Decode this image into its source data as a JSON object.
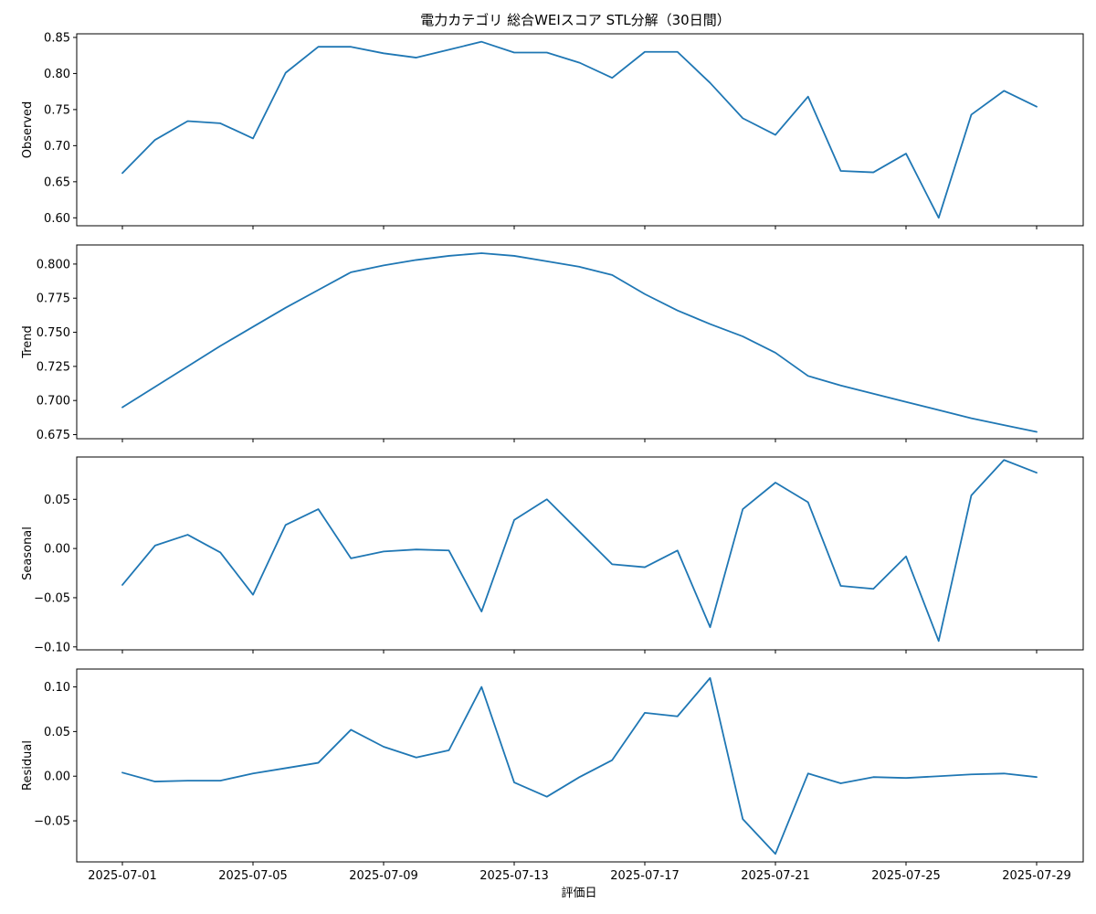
{
  "chart_data": {
    "type": "line",
    "title": "電力カテゴリ 総合WEIスコア STL分解（30日間）",
    "xlabel": "評価日",
    "x": [
      "2025-07-01",
      "2025-07-02",
      "2025-07-03",
      "2025-07-04",
      "2025-07-05",
      "2025-07-06",
      "2025-07-07",
      "2025-07-08",
      "2025-07-09",
      "2025-07-10",
      "2025-07-11",
      "2025-07-12",
      "2025-07-13",
      "2025-07-14",
      "2025-07-15",
      "2025-07-16",
      "2025-07-17",
      "2025-07-18",
      "2025-07-19",
      "2025-07-20",
      "2025-07-21",
      "2025-07-22",
      "2025-07-23",
      "2025-07-24",
      "2025-07-25",
      "2025-07-26",
      "2025-07-27",
      "2025-07-28",
      "2025-07-29"
    ],
    "xtick_labels": [
      "2025-07-01",
      "2025-07-05",
      "2025-07-09",
      "2025-07-13",
      "2025-07-17",
      "2025-07-21",
      "2025-07-25",
      "2025-07-29"
    ],
    "color": "#1f77b4",
    "grid": false,
    "panels": [
      {
        "ylabel": "Observed",
        "ylim": [
          0.589,
          0.855
        ],
        "yticks": [
          0.6,
          0.65,
          0.7,
          0.75,
          0.8,
          0.85
        ],
        "ytick_labels": [
          "0.60",
          "0.65",
          "0.70",
          "0.75",
          "0.80",
          "0.85"
        ],
        "values": [
          0.662,
          0.708,
          0.734,
          0.731,
          0.71,
          0.801,
          0.837,
          0.837,
          0.828,
          0.822,
          0.833,
          0.844,
          0.829,
          0.829,
          0.815,
          0.794,
          0.83,
          0.83,
          0.787,
          0.738,
          0.715,
          0.768,
          0.665,
          0.663,
          0.689,
          0.6,
          0.743,
          0.776,
          0.754
        ]
      },
      {
        "ylabel": "Trend",
        "ylim": [
          0.672,
          0.814
        ],
        "yticks": [
          0.675,
          0.7,
          0.725,
          0.75,
          0.775,
          0.8
        ],
        "ytick_labels": [
          "0.675",
          "0.700",
          "0.725",
          "0.750",
          "0.775",
          "0.800"
        ],
        "values": [
          0.695,
          0.71,
          0.725,
          0.74,
          0.754,
          0.768,
          0.781,
          0.794,
          0.799,
          0.803,
          0.806,
          0.808,
          0.806,
          0.802,
          0.798,
          0.792,
          0.778,
          0.766,
          0.756,
          0.747,
          0.735,
          0.718,
          0.711,
          0.705,
          0.699,
          0.693,
          0.687,
          0.682,
          0.677
        ]
      },
      {
        "ylabel": "Seasonal",
        "ylim": [
          -0.103,
          0.093
        ],
        "yticks": [
          -0.1,
          -0.05,
          0.0,
          0.05
        ],
        "ytick_labels": [
          "−0.10",
          "−0.05",
          "0.00",
          "0.05"
        ],
        "values": [
          -0.037,
          0.003,
          0.014,
          -0.004,
          -0.047,
          0.024,
          0.04,
          -0.01,
          -0.003,
          -0.001,
          -0.002,
          -0.064,
          0.029,
          0.05,
          0.017,
          -0.016,
          -0.019,
          -0.002,
          -0.08,
          0.04,
          0.067,
          0.047,
          -0.038,
          -0.041,
          -0.008,
          -0.094,
          0.054,
          0.09,
          0.077
        ]
      },
      {
        "ylabel": "Residual",
        "ylim": [
          -0.096,
          0.12
        ],
        "yticks": [
          -0.05,
          0.0,
          0.05,
          0.1
        ],
        "ytick_labels": [
          "−0.05",
          "0.00",
          "0.05",
          "0.10"
        ],
        "values": [
          0.004,
          -0.006,
          -0.005,
          -0.005,
          0.003,
          0.009,
          0.015,
          0.052,
          0.033,
          0.021,
          0.029,
          0.1,
          -0.007,
          -0.023,
          -0.001,
          0.018,
          0.071,
          0.067,
          0.11,
          -0.048,
          -0.087,
          0.003,
          -0.008,
          -0.001,
          -0.002,
          0.0,
          0.002,
          0.003,
          -0.001
        ]
      }
    ]
  }
}
